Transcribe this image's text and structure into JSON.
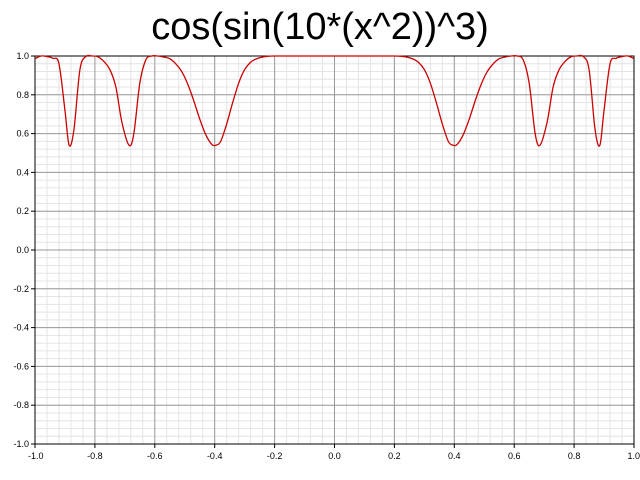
{
  "chart_data": {
    "type": "line",
    "title": "cos(sin(10*(x^2))^3)",
    "xlabel": "",
    "ylabel": "",
    "xlim": [
      -1.0,
      1.0
    ],
    "ylim": [
      -1.0,
      1.0
    ],
    "x_ticks": [
      "-1.0",
      "-0.8",
      "-0.6",
      "-0.4",
      "-0.2",
      "0.0",
      "0.2",
      "0.4",
      "0.6",
      "0.8",
      "1.0"
    ],
    "y_ticks": [
      "1.0",
      "0.8",
      "0.6",
      "0.4",
      "0.2",
      "0.0",
      "-0.2",
      "-0.4",
      "-0.6",
      "-0.8",
      "-1.0"
    ],
    "grid": true,
    "series": [
      {
        "color": "#cc0000",
        "x": [
          -1.0,
          -0.98,
          -0.96,
          -0.94,
          -0.92,
          -0.9,
          -0.886,
          -0.87,
          -0.85,
          -0.83,
          -0.81,
          -0.79,
          -0.77,
          -0.75,
          -0.73,
          -0.71,
          -0.686,
          -0.67,
          -0.65,
          -0.63,
          -0.61,
          -0.59,
          -0.57,
          -0.55,
          -0.53,
          -0.51,
          -0.49,
          -0.47,
          -0.45,
          -0.43,
          -0.41,
          -0.396,
          -0.38,
          -0.36,
          -0.34,
          -0.32,
          -0.3,
          -0.28,
          -0.26,
          -0.24,
          -0.22,
          -0.2,
          -0.15,
          -0.1,
          -0.05,
          0.0,
          0.05,
          0.1,
          0.15,
          0.2,
          0.22,
          0.24,
          0.26,
          0.28,
          0.3,
          0.32,
          0.34,
          0.36,
          0.38,
          0.396,
          0.41,
          0.43,
          0.45,
          0.47,
          0.49,
          0.51,
          0.53,
          0.55,
          0.57,
          0.59,
          0.61,
          0.63,
          0.65,
          0.67,
          0.686,
          0.71,
          0.73,
          0.75,
          0.77,
          0.79,
          0.81,
          0.83,
          0.85,
          0.87,
          0.886,
          0.9,
          0.92,
          0.94,
          0.96,
          0.98,
          1.0
        ],
        "y": [
          0.986,
          1.0,
          0.997,
          0.988,
          0.96,
          0.72,
          0.54,
          0.62,
          0.93,
          0.998,
          1.0,
          0.996,
          0.972,
          0.93,
          0.84,
          0.66,
          0.54,
          0.6,
          0.86,
          0.98,
          1.0,
          1.0,
          0.995,
          0.986,
          0.96,
          0.92,
          0.855,
          0.77,
          0.675,
          0.595,
          0.545,
          0.54,
          0.56,
          0.65,
          0.76,
          0.86,
          0.93,
          0.968,
          0.986,
          0.995,
          0.999,
          1.0,
          1.0,
          1.0,
          1.0,
          1.0,
          1.0,
          1.0,
          1.0,
          1.0,
          0.999,
          0.995,
          0.986,
          0.968,
          0.93,
          0.86,
          0.76,
          0.65,
          0.56,
          0.54,
          0.545,
          0.595,
          0.675,
          0.77,
          0.855,
          0.92,
          0.96,
          0.986,
          0.995,
          1.0,
          1.0,
          0.98,
          0.86,
          0.6,
          0.54,
          0.66,
          0.84,
          0.93,
          0.972,
          0.996,
          1.0,
          0.998,
          0.93,
          0.62,
          0.54,
          0.72,
          0.96,
          0.988,
          0.997,
          1.0,
          0.986
        ]
      }
    ]
  }
}
